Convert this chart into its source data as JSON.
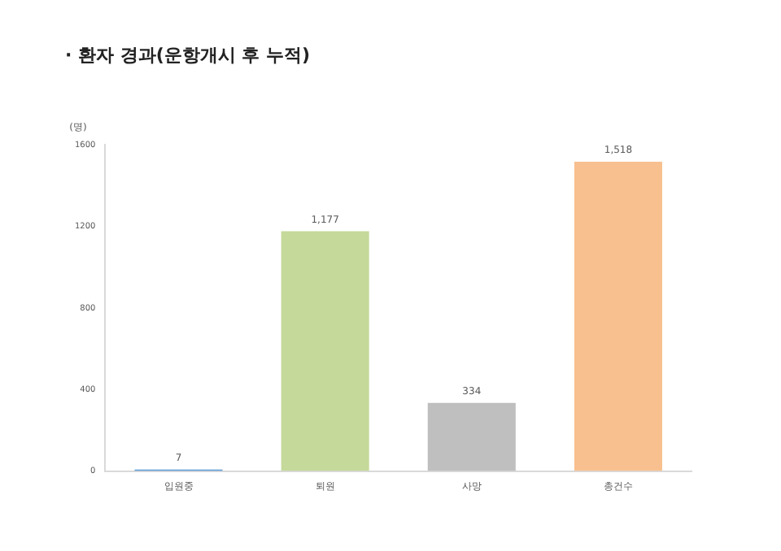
{
  "chart_data": {
    "type": "bar",
    "title": "· 환자 경과(운항개시 후 누적)",
    "ylabel": "(명)",
    "categories": [
      "입원중",
      "퇴원",
      "사망",
      "총건수"
    ],
    "values": [
      7,
      1177,
      334,
      1518
    ],
    "value_labels": [
      "7",
      "1,177",
      "334",
      "1,518"
    ],
    "colors": [
      "#5b9bd5",
      "#c5d99a",
      "#bfbfbf",
      "#f8c08f"
    ],
    "ylim": [
      0,
      1600
    ],
    "yticks": [
      0,
      400,
      800,
      1200,
      1600
    ],
    "grid": false,
    "legend": false
  }
}
